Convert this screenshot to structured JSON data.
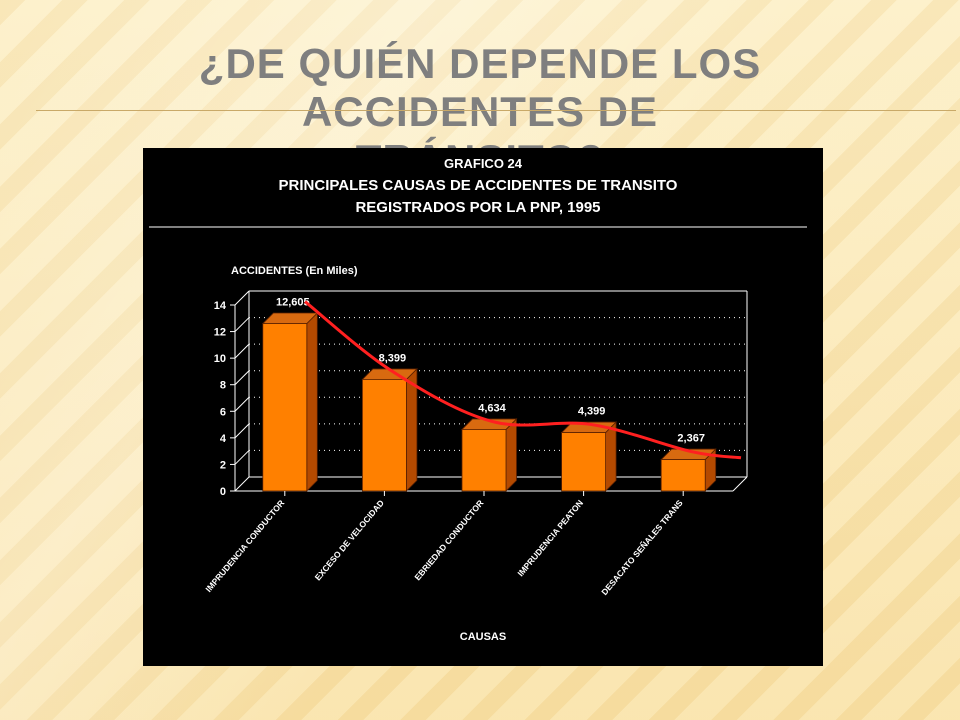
{
  "slide": {
    "title_line1": "¿De quién depende los accidentes de",
    "title_line2": "tránsito?"
  },
  "chart_data": {
    "type": "bar",
    "header_line1": "GRAFICO 24",
    "title": "PRINCIPALES CAUSAS DE ACCIDENTES DE TRANSITO",
    "subtitle": "REGISTRADOS POR LA PNP, 1995",
    "ylabel": "ACCIDENTES  (En Miles)",
    "xlabel": "CAUSAS",
    "ylim": [
      0,
      14
    ],
    "yticks": [
      0,
      2,
      4,
      6,
      8,
      10,
      12,
      14
    ],
    "grid": true,
    "categories": [
      "IMPRUDENCIA CONDUCTOR",
      "EXCESO DE VELOCIDAD",
      "EBRIEDAD CONDUCTOR",
      "IMPRUDENCIA PEATON",
      "DESACATO SEÑALES TRANS"
    ],
    "values": [
      12.605,
      8.399,
      4.634,
      4.399,
      2.367
    ],
    "value_labels": [
      "12,605",
      "8,399",
      "4,634",
      "4,399",
      "2,367"
    ],
    "colors": {
      "bar": "#ff8000",
      "trend": "#ff2020",
      "background": "#000000"
    }
  }
}
